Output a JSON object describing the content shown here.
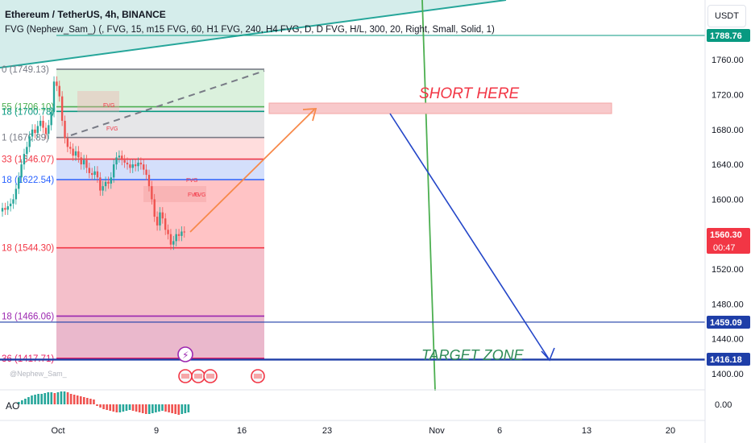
{
  "header": {
    "title": "Ethereum / TetherUS, 4h, BINANCE",
    "indicator": "FVG (Nephew_Sam_) (, FVG, 15, m15 FVG, 60, H1 FVG, 240, H4 FVG, D, D FVG, H/L, 300, 20, Right, Small, Solid, 1)"
  },
  "currency_button": "USDT",
  "watermark": "@Nephew_Sam_",
  "oscillator_label": "AO",
  "colors": {
    "up": "#26a69a",
    "down": "#ef5350",
    "short_zone": "#f8c9cb",
    "target": "#1e3ea8",
    "arrow": "#f7894a",
    "projection": "#2446c8",
    "vline": "#4caf50"
  },
  "chart_data": {
    "type": "candlestick",
    "symbol": "ETHUSDT",
    "timeframe": "4h",
    "x_ticks": [
      "Oct",
      "9",
      "16",
      "23",
      "Nov",
      "6",
      "13",
      "20"
    ],
    "y_ticks": [
      1760,
      1720,
      1680,
      1640,
      1600,
      1560,
      1520,
      1480,
      1440,
      1400
    ],
    "ylim": [
      1390,
      1800
    ],
    "price_labels": [
      {
        "value": "1788.76"
      },
      {
        "value": "1560.30",
        "sub": "00:47"
      },
      {
        "value": "1459.09"
      },
      {
        "value": "1416.18"
      }
    ],
    "fib_levels": [
      {
        "label": "0 (1749.13)",
        "value": 1749.13,
        "color": "#787b86"
      },
      {
        "label": "55 (1706.10)",
        "value": 1706.1,
        "color": "#4caf50"
      },
      {
        "label": "18 (1700.78)",
        "value": 1700.78,
        "color": "#089981"
      },
      {
        "label": "1 (1670.89)",
        "value": 1670.89,
        "color": "#787b86"
      },
      {
        "label": "33 (1646.07)",
        "value": 1646.07,
        "color": "#f23645"
      },
      {
        "label": "18 (1622.54)",
        "value": 1622.54,
        "color": "#2962ff"
      },
      {
        "label": "18 (1544.30)",
        "value": 1544.3,
        "color": "#f23645"
      },
      {
        "label": "18 (1466.06)",
        "value": 1466.06,
        "color": "#9c27b0"
      },
      {
        "label": "36 (1417.71)",
        "value": 1417.71,
        "color": "#e91e63"
      }
    ],
    "annotations": [
      {
        "text": "SHORT HERE",
        "color": "#f23645"
      },
      {
        "text": "TARGET ZONE",
        "color": "#2e8b57"
      }
    ],
    "fvg_labels": [
      "FVG",
      "FVG",
      "FVG",
      "FVG",
      "FVG"
    ],
    "candles_close": [
      1590,
      1588,
      1592,
      1595,
      1600,
      1612,
      1625,
      1640,
      1652,
      1660,
      1672,
      1680,
      1676,
      1684,
      1690,
      1682,
      1675,
      1685,
      1700,
      1735,
      1730,
      1718,
      1690,
      1670,
      1660,
      1658,
      1650,
      1655,
      1648,
      1640,
      1645,
      1636,
      1630,
      1628,
      1632,
      1625,
      1610,
      1615,
      1620,
      1618,
      1625,
      1640,
      1648,
      1650,
      1645,
      1642,
      1640,
      1636,
      1640,
      1638,
      1642,
      1640,
      1634,
      1628,
      1615,
      1600,
      1580,
      1570,
      1585,
      1578,
      1565,
      1560,
      1548,
      1552,
      1560,
      1558,
      1563,
      1562
    ],
    "ao_values": [
      3,
      5,
      7,
      9,
      11,
      12,
      13,
      13,
      14,
      15,
      15,
      14,
      15,
      16,
      16,
      15,
      13,
      12,
      11,
      10,
      9,
      8,
      7,
      6,
      -2,
      -4,
      -6,
      -7,
      -8,
      -9,
      -10,
      -10,
      -9,
      -8,
      -7,
      -8,
      -9,
      -10,
      -11,
      -12,
      -12,
      -11,
      -10,
      -9,
      -8,
      -9,
      -10,
      -11,
      -12,
      -13,
      -12,
      -11,
      -10
    ]
  }
}
